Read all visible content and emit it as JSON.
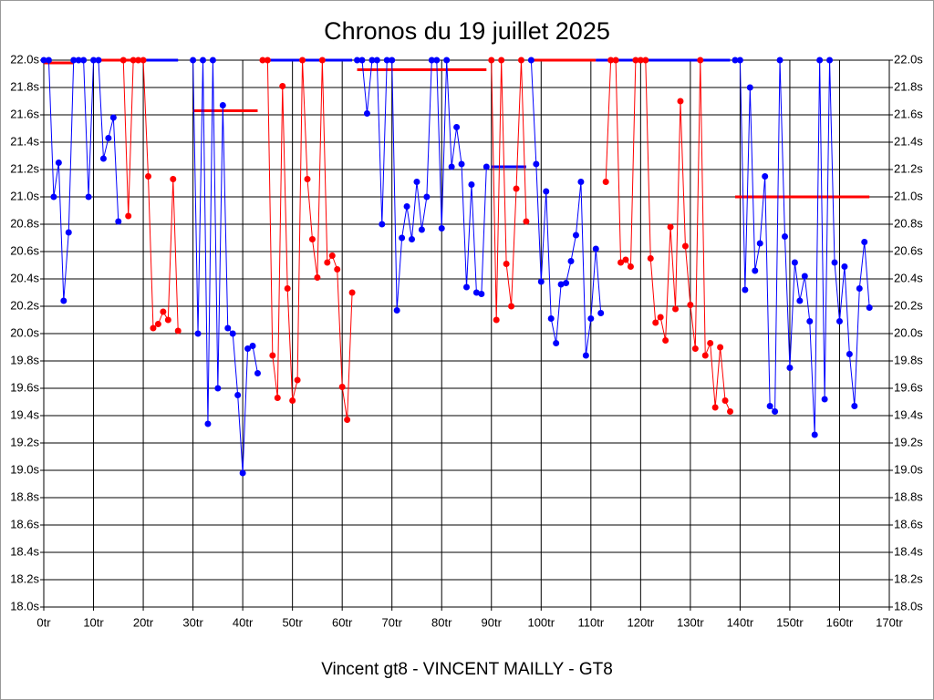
{
  "chart_data": {
    "type": "line",
    "title": "Chronos du 19 juillet 2025",
    "x_label": "Vincent gt8 - VINCENT MAILLY - GT8",
    "xlim": [
      0,
      170
    ],
    "ylim": [
      18.0,
      22.0
    ],
    "xticks": [
      {
        "value": 0,
        "label": "0tr"
      },
      {
        "value": 10,
        "label": "10tr"
      },
      {
        "value": 20,
        "label": "20tr"
      },
      {
        "value": 30,
        "label": "30tr"
      },
      {
        "value": 40,
        "label": "40tr"
      },
      {
        "value": 50,
        "label": "50tr"
      },
      {
        "value": 60,
        "label": "60tr"
      },
      {
        "value": 70,
        "label": "70tr"
      },
      {
        "value": 80,
        "label": "80tr"
      },
      {
        "value": 90,
        "label": "90tr"
      },
      {
        "value": 100,
        "label": "100tr"
      },
      {
        "value": 110,
        "label": "110tr"
      },
      {
        "value": 120,
        "label": "120tr"
      },
      {
        "value": 130,
        "label": "130tr"
      },
      {
        "value": 140,
        "label": "140tr"
      },
      {
        "value": 150,
        "label": "150tr"
      },
      {
        "value": 160,
        "label": "160tr"
      },
      {
        "value": 170,
        "label": "170tr"
      }
    ],
    "yticks": [
      {
        "value": 18.0,
        "label": "18.0s"
      },
      {
        "value": 18.2,
        "label": "18.2s"
      },
      {
        "value": 18.4,
        "label": "18.4s"
      },
      {
        "value": 18.6,
        "label": "18.6s"
      },
      {
        "value": 18.8,
        "label": "18.8s"
      },
      {
        "value": 19.0,
        "label": "19.0s"
      },
      {
        "value": 19.2,
        "label": "19.2s"
      },
      {
        "value": 19.4,
        "label": "19.4s"
      },
      {
        "value": 19.6,
        "label": "19.6s"
      },
      {
        "value": 19.8,
        "label": "19.8s"
      },
      {
        "value": 20.0,
        "label": "20.0s"
      },
      {
        "value": 20.2,
        "label": "20.2s"
      },
      {
        "value": 20.4,
        "label": "20.4s"
      },
      {
        "value": 20.6,
        "label": "20.6s"
      },
      {
        "value": 20.8,
        "label": "20.8s"
      },
      {
        "value": 21.0,
        "label": "21.0s"
      },
      {
        "value": 21.2,
        "label": "21.2s"
      },
      {
        "value": 21.4,
        "label": "21.4s"
      },
      {
        "value": 21.6,
        "label": "21.6s"
      },
      {
        "value": 21.8,
        "label": "21.8s"
      },
      {
        "value": 22.0,
        "label": "22.0s"
      }
    ],
    "grid": true,
    "series": [
      {
        "color": "#0000ff",
        "x": [
          0,
          1,
          2,
          3,
          4,
          5,
          6,
          7,
          8,
          9,
          10,
          11,
          12,
          13,
          14,
          15
        ],
        "values": [
          22.0,
          22.0,
          21.0,
          21.25,
          20.24,
          20.74,
          22.0,
          22.0,
          22.0,
          21.0,
          22.0,
          22.0,
          21.28,
          21.43,
          21.58,
          20.82
        ]
      },
      {
        "color": "#ff0000",
        "x": [
          16,
          17,
          18,
          19,
          20,
          21,
          22,
          23,
          24,
          25,
          26,
          27
        ],
        "values": [
          22.0,
          20.86,
          22.0,
          22.0,
          22.0,
          21.15,
          20.04,
          20.07,
          20.16,
          20.1,
          21.13,
          20.02
        ]
      },
      {
        "color": "#0000ff",
        "x": [
          30,
          31,
          32,
          33,
          34,
          35,
          36,
          37,
          38,
          39,
          40,
          41,
          42,
          43
        ],
        "values": [
          22.0,
          20.0,
          22.0,
          19.34,
          22.0,
          19.6,
          21.67,
          20.04,
          20.0,
          19.55,
          18.98,
          19.89,
          19.91,
          19.71
        ]
      },
      {
        "color": "#ff0000",
        "x": [
          44,
          45,
          46,
          47,
          48,
          49,
          50,
          51,
          52,
          53,
          54,
          55,
          56,
          57,
          58,
          59,
          60,
          61,
          62
        ],
        "values": [
          22.0,
          22.0,
          19.84,
          19.53,
          21.81,
          20.33,
          19.51,
          19.66,
          22.0,
          21.13,
          20.69,
          20.41,
          22.0,
          20.52,
          20.57,
          20.47,
          19.61,
          19.37,
          20.3
        ]
      },
      {
        "color": "#0000ff",
        "x": [
          63,
          64,
          65,
          66,
          67,
          68,
          69,
          70,
          71,
          72,
          73,
          74,
          75,
          76,
          77,
          78,
          79,
          80,
          81,
          82,
          83,
          84,
          85,
          86,
          87,
          88,
          89
        ],
        "values": [
          22.0,
          22.0,
          21.61,
          22.0,
          22.0,
          20.8,
          22.0,
          22.0,
          20.17,
          20.7,
          20.93,
          20.69,
          21.11,
          20.76,
          21.0,
          22.0,
          22.0,
          20.77,
          22.0,
          21.22,
          21.51,
          21.24,
          20.34,
          21.09,
          20.3,
          20.29,
          21.22
        ]
      },
      {
        "color": "#ff0000",
        "x": [
          90,
          91,
          92,
          93,
          94,
          95,
          96,
          97
        ],
        "values": [
          22.0,
          20.1,
          22.0,
          20.51,
          20.2,
          21.06,
          22.0,
          20.82
        ]
      },
      {
        "color": "#0000ff",
        "x": [
          98,
          99,
          100,
          101,
          102,
          103,
          104,
          105,
          106,
          107,
          108,
          109,
          110,
          111,
          112
        ],
        "values": [
          22.0,
          21.24,
          20.38,
          21.04,
          20.11,
          19.93,
          20.36,
          20.37,
          20.53,
          20.72,
          21.11,
          19.84,
          20.11,
          20.62,
          20.15
        ]
      },
      {
        "color": "#ff0000",
        "x": [
          113,
          114,
          115,
          116,
          117,
          118,
          119,
          120,
          121,
          122,
          123,
          124,
          125,
          126,
          127,
          128,
          129,
          130,
          131,
          132,
          133,
          134,
          135,
          136,
          137,
          138
        ],
        "values": [
          21.11,
          22.0,
          22.0,
          20.52,
          20.54,
          20.49,
          22.0,
          22.0,
          22.0,
          20.55,
          20.08,
          20.12,
          19.95,
          20.78,
          20.18,
          21.7,
          20.64,
          20.21,
          19.89,
          22.0,
          19.84,
          19.93,
          19.46,
          19.9,
          19.51,
          19.43
        ]
      },
      {
        "color": "#0000ff",
        "x": [
          139,
          140,
          141,
          142,
          143,
          144,
          145,
          146,
          147,
          148,
          149,
          150,
          151,
          152,
          153,
          154,
          155,
          156,
          157,
          158,
          159,
          160,
          161,
          162,
          163,
          164,
          165,
          166
        ],
        "values": [
          22.0,
          22.0,
          20.32,
          21.8,
          20.46,
          20.66,
          21.15,
          19.47,
          19.43,
          22.0,
          20.71,
          19.75,
          20.52,
          20.24,
          20.42,
          20.09,
          19.26,
          22.0,
          19.52,
          22.0,
          20.52,
          20.09,
          20.49,
          19.85,
          19.47,
          20.33,
          20.67,
          20.19
        ]
      }
    ],
    "averages": [
      {
        "color": "#ff0000",
        "from": 0,
        "to": 6,
        "value": 21.98
      },
      {
        "color": "#ff0000",
        "from": 11,
        "to": 20,
        "value": 22.0
      },
      {
        "color": "#0000ff",
        "from": 20,
        "to": 27,
        "value": 22.0
      },
      {
        "color": "#ff0000",
        "from": 30,
        "to": 43,
        "value": 21.63
      },
      {
        "color": "#0000ff",
        "from": 45,
        "to": 62,
        "value": 22.0
      },
      {
        "color": "#ff0000",
        "from": 63,
        "to": 89,
        "value": 21.93
      },
      {
        "color": "#0000ff",
        "from": 90,
        "to": 97,
        "value": 21.22
      },
      {
        "color": "#ff0000",
        "from": 98,
        "to": 111,
        "value": 22.0
      },
      {
        "color": "#0000ff",
        "from": 111,
        "to": 138,
        "value": 22.0
      },
      {
        "color": "#ff0000",
        "from": 139,
        "to": 166,
        "value": 21.0
      }
    ]
  }
}
